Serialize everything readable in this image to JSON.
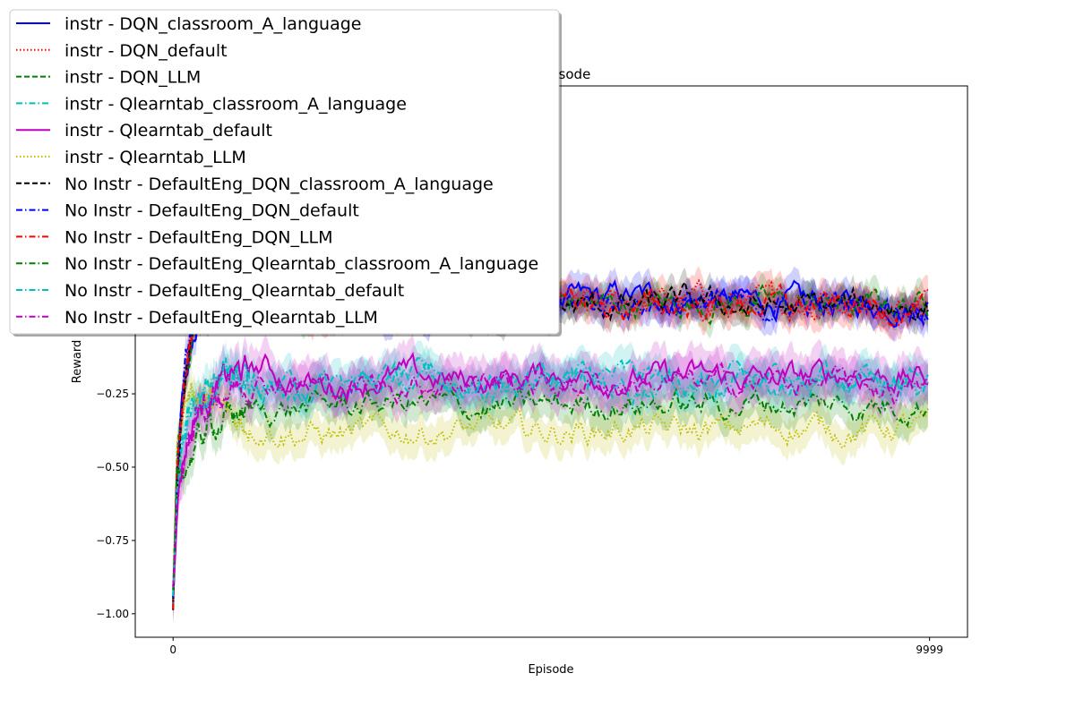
{
  "chart_data": {
    "type": "line",
    "title": "per Episode",
    "xlabel": "Episode",
    "ylabel": "Reward",
    "x_ticks": [
      "0",
      "9999"
    ],
    "y_ticks": [
      "−1.00",
      "−0.75",
      "−0.50",
      "−0.25"
    ],
    "xlim": [
      -500,
      10500
    ],
    "ylim": [
      -1.08,
      0.8
    ],
    "grid": false,
    "legend_placement": "upper-left (overlapping axes)",
    "series": [
      {
        "name": "instr - DQN_classroom_A_language",
        "color": "#0000ff",
        "dash": "solid",
        "x": [
          0,
          50,
          120,
          200,
          300,
          400,
          600,
          1000,
          1500,
          2000,
          3000,
          4000,
          5000,
          6000,
          7000,
          8000,
          9000,
          9999
        ],
        "y": [
          -0.98,
          -0.55,
          -0.3,
          -0.15,
          -0.05,
          0.05,
          0.1,
          0.05,
          0.08,
          0.07,
          0.06,
          0.04,
          0.06,
          0.08,
          0.07,
          0.06,
          0.05,
          0.06
        ],
        "band": 0.05
      },
      {
        "name": "instr - DQN_default",
        "color": "#ff0000",
        "dash": "dotted",
        "x": [
          0,
          50,
          120,
          200,
          300,
          400,
          600,
          1000,
          1500,
          2000,
          3000,
          4000,
          5000,
          6000,
          7000,
          8000,
          9000,
          9999
        ],
        "y": [
          -0.97,
          -0.5,
          -0.28,
          -0.1,
          0.0,
          0.05,
          0.08,
          0.06,
          0.05,
          0.07,
          0.05,
          0.06,
          0.04,
          0.06,
          0.07,
          0.05,
          0.06,
          0.05
        ],
        "band": 0.05
      },
      {
        "name": "instr - DQN_LLM",
        "color": "#008000",
        "dash": "dashed",
        "x": [
          0,
          50,
          120,
          200,
          300,
          400,
          600,
          1000,
          1500,
          2000,
          3000,
          4000,
          5000,
          6000,
          7000,
          8000,
          9000,
          9999
        ],
        "y": [
          -0.96,
          -0.52,
          -0.25,
          -0.08,
          0.02,
          0.06,
          0.07,
          0.05,
          0.06,
          0.05,
          0.05,
          0.04,
          0.06,
          0.05,
          0.06,
          0.06,
          0.05,
          0.06
        ],
        "band": 0.05
      },
      {
        "name": "instr - Qlearntab_classroom_A_language",
        "color": "#00bfbf",
        "dash": "dashdot",
        "x": [
          0,
          50,
          120,
          200,
          300,
          500,
          800,
          1200,
          1500,
          2000,
          3000,
          4000,
          5000,
          6000,
          7000,
          8000,
          9000,
          9999
        ],
        "y": [
          -0.95,
          -0.55,
          -0.42,
          -0.32,
          -0.25,
          -0.2,
          -0.18,
          -0.2,
          -0.22,
          -0.21,
          -0.2,
          -0.21,
          -0.2,
          -0.19,
          -0.21,
          -0.2,
          -0.2,
          -0.19
        ],
        "band": 0.06
      },
      {
        "name": "instr - Qlearntab_default",
        "color": "#bf00bf",
        "dash": "solid",
        "x": [
          0,
          50,
          120,
          200,
          300,
          500,
          800,
          1200,
          1500,
          2000,
          3000,
          4000,
          5000,
          6000,
          7000,
          8000,
          9000,
          9999
        ],
        "y": [
          -0.93,
          -0.6,
          -0.48,
          -0.4,
          -0.32,
          -0.25,
          -0.18,
          -0.16,
          -0.2,
          -0.22,
          -0.19,
          -0.21,
          -0.18,
          -0.2,
          -0.19,
          -0.2,
          -0.18,
          -0.2
        ],
        "band": 0.07
      },
      {
        "name": "instr - Qlearntab_LLM",
        "color": "#bfbf00",
        "dash": "dotted",
        "x": [
          0,
          50,
          120,
          200,
          300,
          500,
          800,
          1200,
          1500,
          2000,
          3000,
          4000,
          5000,
          6000,
          7000,
          8000,
          9000,
          9999
        ],
        "y": [
          -0.92,
          -0.45,
          -0.3,
          -0.25,
          -0.24,
          -0.28,
          -0.34,
          -0.36,
          -0.38,
          -0.39,
          -0.38,
          -0.37,
          -0.38,
          -0.37,
          -0.38,
          -0.36,
          -0.37,
          -0.36
        ],
        "band": 0.06
      },
      {
        "name": "No Instr - DefaultEng_DQN_classroom_A_language",
        "color": "#000000",
        "dash": "dashed",
        "x": [
          0,
          50,
          120,
          200,
          300,
          400,
          600,
          1000,
          1500,
          2000,
          3000,
          4000,
          5000,
          6000,
          7000,
          8000,
          9000,
          9999
        ],
        "y": [
          -1.0,
          -0.58,
          -0.3,
          -0.12,
          0.0,
          0.05,
          0.06,
          0.04,
          0.05,
          0.05,
          0.06,
          0.05,
          0.04,
          0.05,
          0.06,
          0.04,
          0.05,
          0.05
        ],
        "band": 0.05
      },
      {
        "name": "No Instr - DefaultEng_DQN_default",
        "color": "#0000ff",
        "dash": "dashdot",
        "x": [
          0,
          50,
          120,
          200,
          300,
          400,
          600,
          1000,
          1500,
          2000,
          3000,
          4000,
          5000,
          6000,
          7000,
          8000,
          9000,
          9999
        ],
        "y": [
          -0.97,
          -0.52,
          -0.26,
          -0.1,
          0.01,
          0.05,
          0.07,
          0.06,
          0.05,
          0.06,
          0.04,
          0.06,
          0.05,
          0.06,
          0.05,
          0.05,
          0.06,
          0.05
        ],
        "band": 0.05
      },
      {
        "name": "No Instr - DefaultEng_DQN_LLM",
        "color": "#ff0000",
        "dash": "dashdot",
        "x": [
          0,
          50,
          120,
          200,
          300,
          400,
          600,
          1000,
          1500,
          2000,
          3000,
          4000,
          5000,
          6000,
          7000,
          8000,
          9000,
          9999
        ],
        "y": [
          -0.96,
          -0.5,
          -0.27,
          -0.1,
          0.0,
          0.04,
          0.06,
          0.05,
          0.04,
          0.05,
          0.05,
          0.04,
          0.05,
          0.04,
          0.05,
          0.06,
          0.04,
          0.05
        ],
        "band": 0.05
      },
      {
        "name": "No Instr - DefaultEng_Qlearntab_classroom_A_language",
        "color": "#008000",
        "dash": "dashdot",
        "x": [
          0,
          50,
          120,
          200,
          300,
          500,
          800,
          1200,
          1500,
          2000,
          3000,
          4000,
          5000,
          6000,
          7000,
          8000,
          9000,
          9999
        ],
        "y": [
          -0.95,
          -0.58,
          -0.52,
          -0.48,
          -0.42,
          -0.36,
          -0.32,
          -0.3,
          -0.3,
          -0.29,
          -0.28,
          -0.3,
          -0.29,
          -0.28,
          -0.29,
          -0.28,
          -0.29,
          -0.28
        ],
        "band": 0.06
      },
      {
        "name": "No Instr - DefaultEng_Qlearntab_default",
        "color": "#00bfbf",
        "dash": "dashdot",
        "x": [
          0,
          50,
          120,
          200,
          300,
          500,
          800,
          1200,
          1500,
          2000,
          3000,
          4000,
          5000,
          6000,
          7000,
          8000,
          9000,
          9999
        ],
        "y": [
          -0.94,
          -0.56,
          -0.44,
          -0.34,
          -0.26,
          -0.22,
          -0.2,
          -0.22,
          -0.23,
          -0.22,
          -0.21,
          -0.22,
          -0.21,
          -0.22,
          -0.21,
          -0.22,
          -0.21,
          -0.22
        ],
        "band": 0.06
      },
      {
        "name": "No Instr - DefaultEng_Qlearntab_LLM",
        "color": "#bf00bf",
        "dash": "dashdot",
        "x": [
          0,
          50,
          120,
          200,
          300,
          500,
          800,
          1200,
          1500,
          2000,
          3000,
          4000,
          5000,
          6000,
          7000,
          8000,
          9000,
          9999
        ],
        "y": [
          -0.93,
          -0.62,
          -0.5,
          -0.42,
          -0.34,
          -0.27,
          -0.22,
          -0.2,
          -0.21,
          -0.23,
          -0.22,
          -0.2,
          -0.22,
          -0.21,
          -0.22,
          -0.21,
          -0.22,
          -0.24
        ],
        "band": 0.07
      }
    ]
  }
}
